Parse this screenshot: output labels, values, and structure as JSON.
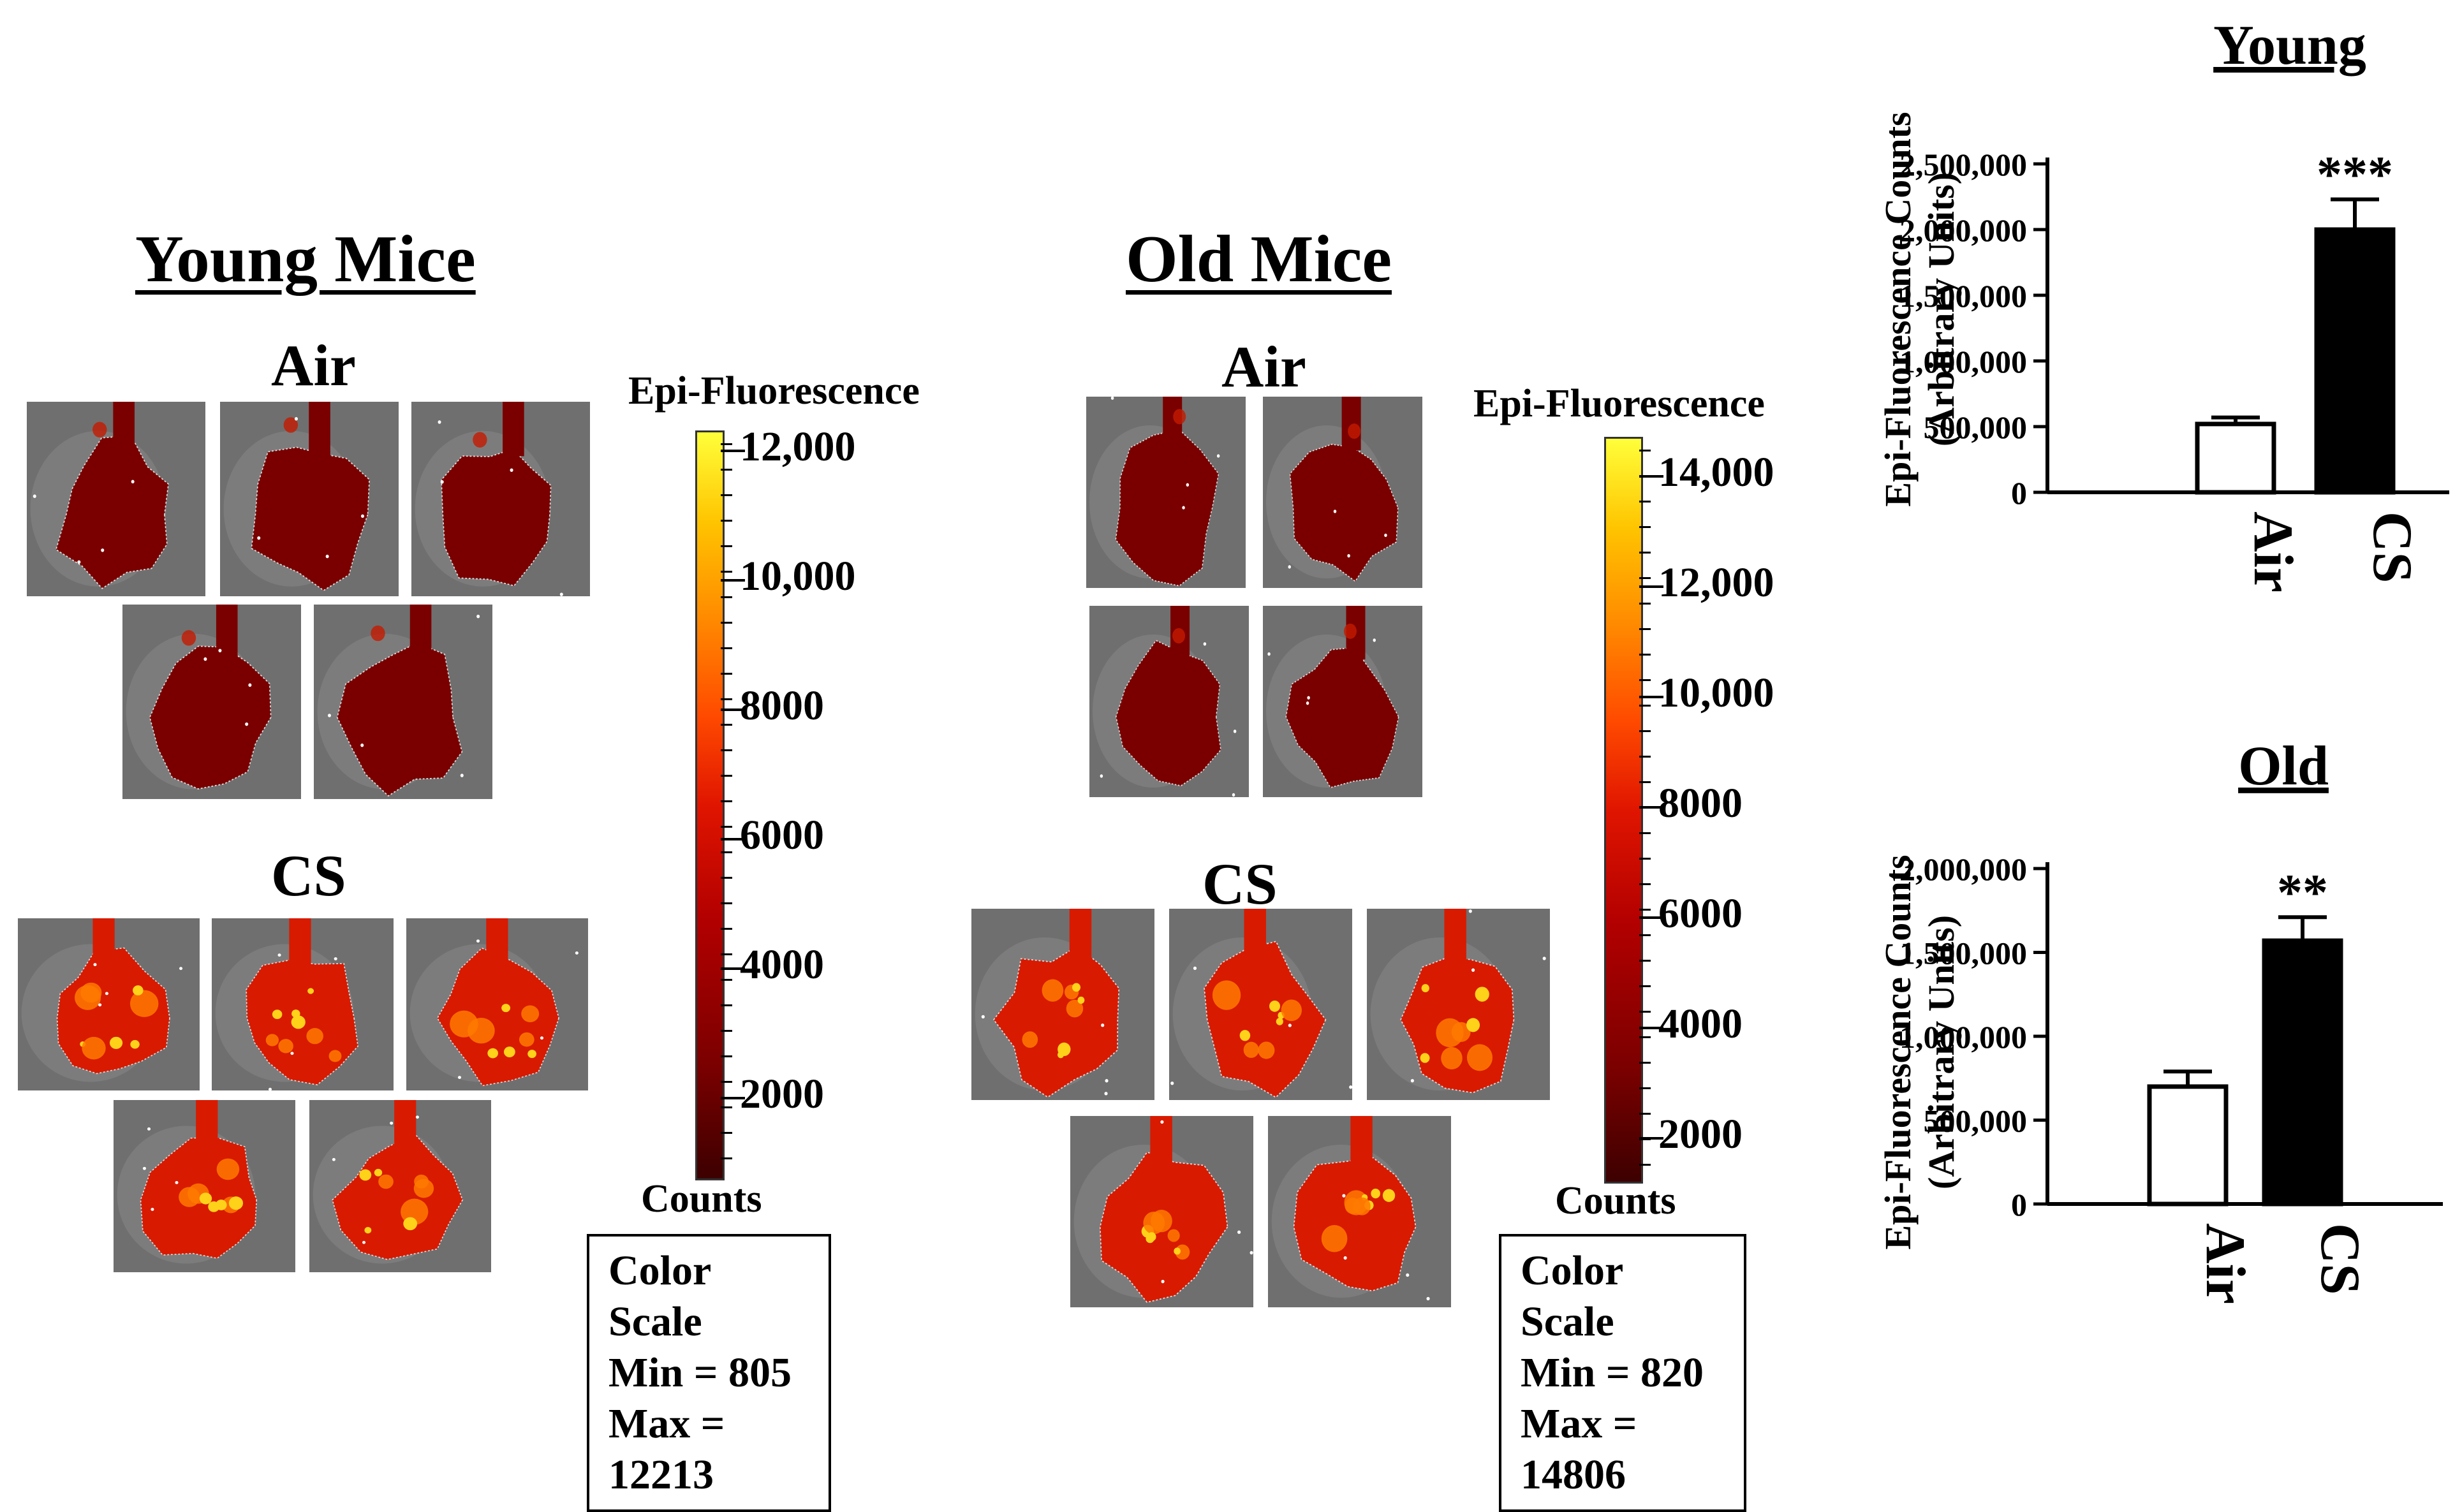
{
  "panels": {
    "young": {
      "title": "Young Mice",
      "air_label": "Air",
      "cs_label": "CS",
      "scale_title": "Epi-Fluorescence",
      "scale_ticks": [
        "12,000",
        "10,000",
        "8000",
        "6000",
        "4000",
        "2000"
      ],
      "scale_unit": "Counts",
      "color_scale": {
        "heading": "Color Scale",
        "min": "Min = 805",
        "max": "Max = 12213"
      }
    },
    "old": {
      "title": "Old Mice",
      "air_label": "Air",
      "cs_label": "CS",
      "scale_title": "Epi-Fluorescence",
      "scale_ticks": [
        "14,000",
        "12,000",
        "10,000",
        "8000",
        "6000",
        "4000",
        "2000"
      ],
      "scale_unit": "Counts",
      "color_scale": {
        "heading": "Color Scale",
        "min": "Min = 820",
        "max": "Max = 14806"
      }
    }
  },
  "colors": {
    "tissue_dim": "#7a0000",
    "tissue_bright": "#d81a00",
    "hotspot": "#ffd21a",
    "background_tile": "#6f6f6f",
    "bar_air": "#ffffff",
    "bar_cs": "#000000"
  },
  "chart_data": [
    {
      "type": "bar",
      "title": "Young",
      "ylabel": "Epi-Fluorescence Counts",
      "ylabel2": "(Arbitrary Units)",
      "categories": [
        "Air",
        "CS"
      ],
      "values": [
        520000,
        2000000
      ],
      "errors": [
        50000,
        230000
      ],
      "significance": [
        "",
        "***"
      ],
      "ylim": [
        0,
        2500000
      ],
      "yticks": [
        0,
        500000,
        1000000,
        1500000,
        2000000,
        2500000
      ],
      "ytick_labels": [
        "0",
        "500,000",
        "1,000,000",
        "1,500,000",
        "2,000,000",
        "2,500,000"
      ]
    },
    {
      "type": "bar",
      "title": "Old",
      "ylabel": "Epi-Fluorescence Counts",
      "ylabel2": "(Arbitrary Units)",
      "categories": [
        "Air",
        "CS"
      ],
      "values": [
        700000,
        1570000
      ],
      "errors": [
        90000,
        140000
      ],
      "significance": [
        "",
        "**"
      ],
      "ylim": [
        0,
        2000000
      ],
      "yticks": [
        0,
        500000,
        1000000,
        1500000,
        2000000
      ],
      "ytick_labels": [
        "0",
        "500,000",
        "1,000,000",
        "1,500,000",
        "2,000,000"
      ]
    }
  ]
}
